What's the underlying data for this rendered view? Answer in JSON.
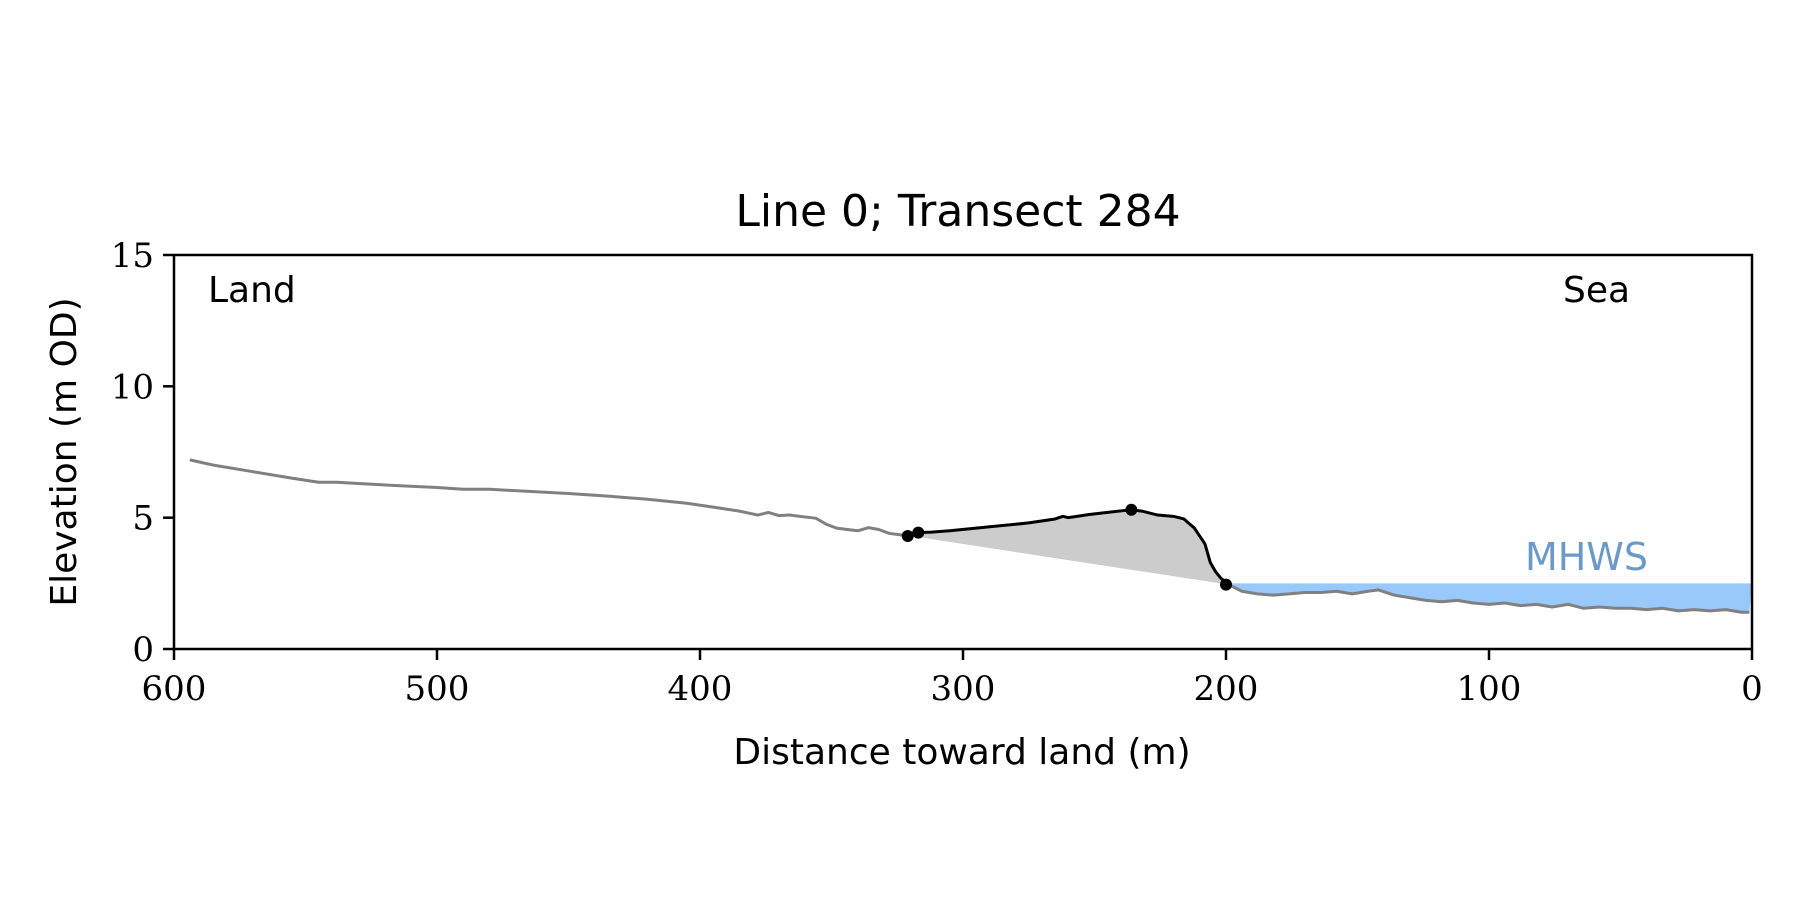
{
  "chart_data": {
    "type": "line",
    "title": "Line 0; Transect 284",
    "xlabel": "Distance toward land (m)",
    "ylabel": "Elevation (m OD)",
    "xlim": [
      600,
      0
    ],
    "ylim": [
      0,
      15
    ],
    "x_ticks": [
      600,
      500,
      400,
      300,
      200,
      100,
      0
    ],
    "x_tick_labels": [
      "600",
      "500",
      "400",
      "300",
      "200",
      "100",
      "0"
    ],
    "y_ticks": [
      0,
      5,
      10,
      15
    ],
    "y_tick_labels": [
      "0",
      "5",
      "10",
      "15"
    ],
    "grid": false,
    "annotations": {
      "left": "Land",
      "right": "Sea",
      "water_label": "MHWS"
    },
    "colors": {
      "profile": "#808080",
      "dune": "#000000",
      "dune_fill": "#cccccc",
      "water": "#99c9fa",
      "water_label": "#6b9ac8"
    },
    "mhws": {
      "elevation": 2.5,
      "x_from": 200,
      "x_to": 0
    },
    "series": [
      {
        "name": "",
        "style": "profile",
        "x": [
          594,
          585,
          570,
          555,
          545,
          538,
          530,
          515,
          500,
          490,
          480,
          465,
          450,
          435,
          420,
          405,
          395,
          385,
          378,
          374,
          370,
          366,
          362,
          356,
          352,
          348,
          344,
          340,
          336,
          332,
          328,
          324,
          320
        ],
        "y": [
          7.2,
          7.0,
          6.75,
          6.5,
          6.35,
          6.35,
          6.3,
          6.22,
          6.15,
          6.08,
          6.08,
          6.0,
          5.92,
          5.82,
          5.7,
          5.55,
          5.4,
          5.25,
          5.1,
          5.2,
          5.08,
          5.1,
          5.05,
          4.98,
          4.75,
          4.6,
          4.55,
          4.5,
          4.62,
          4.55,
          4.4,
          4.35,
          4.3
        ]
      },
      {
        "name": "",
        "style": "dune",
        "x": [
          321,
          317,
          312,
          305,
          295,
          285,
          275,
          265,
          262,
          260,
          258,
          252,
          245,
          238,
          236,
          232,
          226,
          220,
          216,
          212,
          208,
          206,
          204,
          202,
          199
        ],
        "y": [
          4.32,
          4.43,
          4.45,
          4.5,
          4.6,
          4.7,
          4.8,
          4.95,
          5.05,
          5.0,
          5.03,
          5.12,
          5.2,
          5.28,
          5.3,
          5.25,
          5.1,
          5.05,
          4.95,
          4.6,
          4.0,
          3.3,
          2.95,
          2.7,
          2.45
        ]
      },
      {
        "name": "",
        "style": "profile",
        "x": [
          199,
          194,
          188,
          182,
          176,
          170,
          164,
          158,
          152,
          146,
          142,
          136,
          130,
          124,
          118,
          112,
          106,
          100,
          94,
          88,
          82,
          76,
          70,
          64,
          58,
          52,
          46,
          40,
          34,
          28,
          22,
          16,
          10,
          4,
          1
        ],
        "y": [
          2.45,
          2.2,
          2.1,
          2.05,
          2.1,
          2.15,
          2.15,
          2.2,
          2.1,
          2.2,
          2.25,
          2.05,
          1.95,
          1.85,
          1.8,
          1.85,
          1.75,
          1.7,
          1.75,
          1.65,
          1.7,
          1.6,
          1.7,
          1.55,
          1.6,
          1.55,
          1.55,
          1.5,
          1.55,
          1.45,
          1.5,
          1.45,
          1.5,
          1.4,
          1.4
        ]
      }
    ],
    "dune_fill_polygon": {
      "x": [
        321,
        317,
        312,
        305,
        295,
        285,
        275,
        265,
        262,
        260,
        258,
        252,
        245,
        238,
        236,
        232,
        226,
        220,
        216,
        212,
        208,
        206,
        204,
        202,
        199
      ],
      "y": [
        4.32,
        4.43,
        4.45,
        4.5,
        4.6,
        4.7,
        4.8,
        4.95,
        5.05,
        5.0,
        5.03,
        5.12,
        5.2,
        5.28,
        5.3,
        5.25,
        5.1,
        5.05,
        4.95,
        4.6,
        4.0,
        3.3,
        2.95,
        2.7,
        2.45
      ]
    },
    "markers": [
      {
        "x": 321,
        "y": 4.3
      },
      {
        "x": 317,
        "y": 4.43
      },
      {
        "x": 236,
        "y": 5.3
      },
      {
        "x": 200,
        "y": 2.45
      }
    ]
  }
}
